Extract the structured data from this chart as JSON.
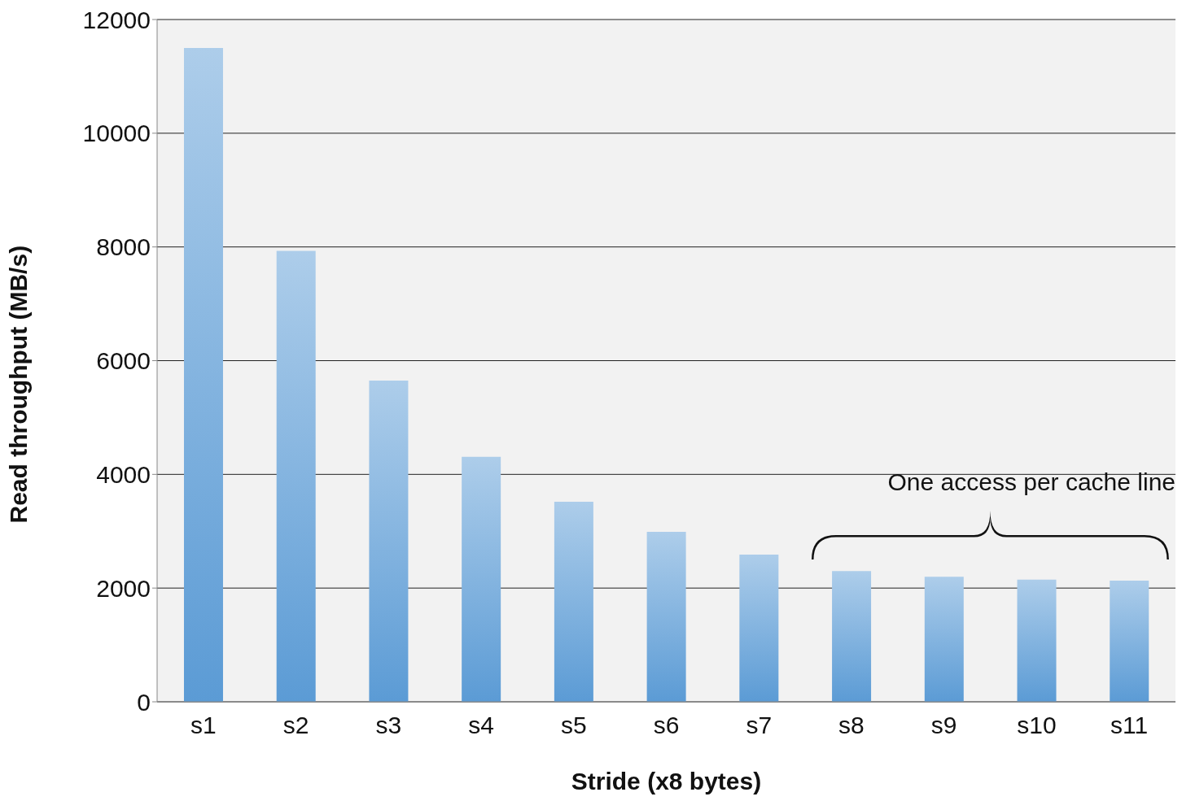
{
  "chart_data": {
    "type": "bar",
    "xlabel": "Stride (x8 bytes)",
    "ylabel": "Read throughput (MB/s)",
    "categories": [
      "s1",
      "s2",
      "s3",
      "s4",
      "s5",
      "s6",
      "s7",
      "s8",
      "s9",
      "s10",
      "s11"
    ],
    "values": [
      11500,
      7930,
      5650,
      4310,
      3520,
      2990,
      2590,
      2300,
      2200,
      2150,
      2130
    ],
    "color": "#5b9bd5",
    "ylim": [
      0,
      12000
    ],
    "yticks": [
      0,
      2000,
      4000,
      6000,
      8000,
      10000,
      12000
    ],
    "grid": "y",
    "annotations": [
      "One access per cache line"
    ]
  }
}
